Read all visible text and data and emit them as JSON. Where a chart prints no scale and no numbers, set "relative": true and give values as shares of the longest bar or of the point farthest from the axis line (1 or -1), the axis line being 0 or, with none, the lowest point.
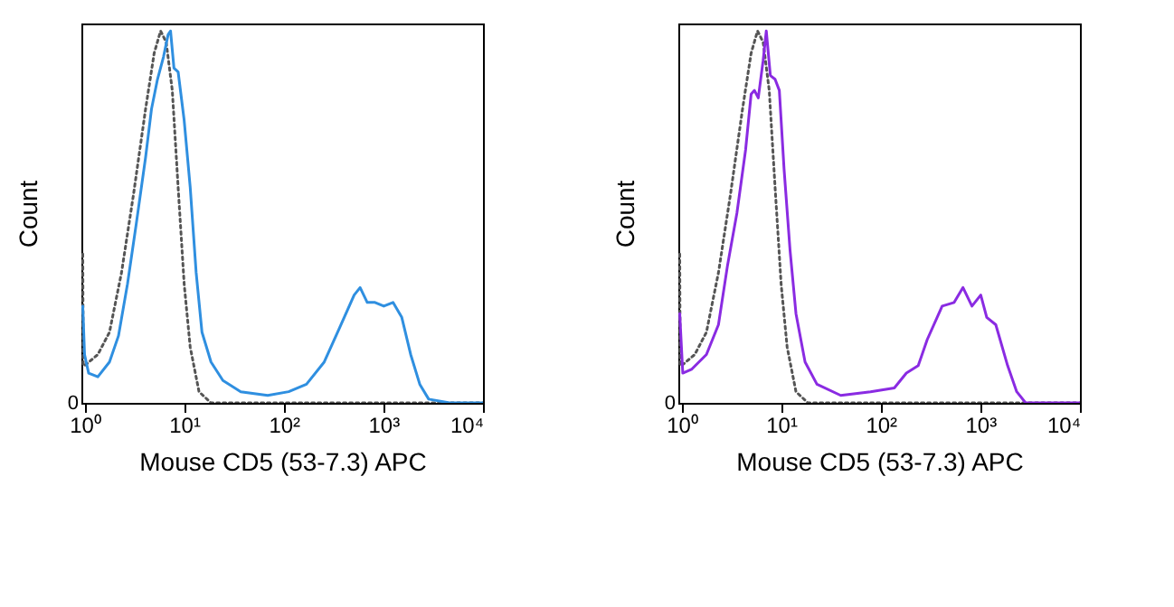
{
  "chart_data": [
    {
      "type": "line",
      "xlabel": "Mouse CD5 (53-7.3) APC",
      "ylabel": "Count",
      "relative": true,
      "log": "x",
      "grid": false,
      "marker": "none",
      "annotations": [
        "0"
      ],
      "xlim": [
        0.93,
        10000
      ],
      "xticks": [
        {
          "value": 1,
          "label": "10⁰"
        },
        {
          "value": 10,
          "label": "10¹"
        },
        {
          "value": 100,
          "label": "10²"
        },
        {
          "value": 1000,
          "label": "10³"
        },
        {
          "value": 10000,
          "label": "10⁴"
        }
      ],
      "series": [
        {
          "color": "#555555",
          "line_style": "dotted",
          "x": [
            0.96,
            0.97,
            1.0,
            1.36,
            1.78,
            2.35,
            3.1,
            4.1,
            5.0,
            5.8,
            6.6,
            7.6,
            8.7,
            10,
            11.5,
            14.1,
            18.6,
            100,
            1000,
            10000
          ],
          "values": [
            0.4,
            0.1,
            0.1,
            0.13,
            0.19,
            0.35,
            0.56,
            0.79,
            0.94,
            1.0,
            0.97,
            0.84,
            0.58,
            0.32,
            0.15,
            0.03,
            0,
            0,
            0,
            0
          ]
        },
        {
          "color": "#2f8fe0",
          "line_style": "solid",
          "x": [
            0.96,
            1.0,
            1.1,
            1.36,
            1.78,
            2.19,
            2.7,
            3.3,
            4.1,
            4.7,
            5.4,
            6.2,
            6.9,
            7.3,
            7.9,
            8.7,
            10,
            11.5,
            13.2,
            15.1,
            18.6,
            24.5,
            37,
            69,
            112,
            169,
            255,
            361,
            509,
            584,
            689,
            824,
            1010,
            1250,
            1530,
            1880,
            2320,
            2850,
            4620,
            10000
          ],
          "values": [
            0.26,
            0.13,
            0.08,
            0.07,
            0.11,
            0.18,
            0.32,
            0.48,
            0.66,
            0.79,
            0.87,
            0.93,
            0.99,
            1.0,
            0.9,
            0.89,
            0.76,
            0.58,
            0.35,
            0.19,
            0.11,
            0.06,
            0.03,
            0.02,
            0.03,
            0.05,
            0.11,
            0.2,
            0.29,
            0.31,
            0.27,
            0.27,
            0.26,
            0.27,
            0.23,
            0.13,
            0.05,
            0.01,
            0,
            0
          ]
        }
      ]
    },
    {
      "type": "line",
      "xlabel": "Mouse CD5 (53-7.3) APC",
      "ylabel": "Count",
      "relative": true,
      "log": "x",
      "grid": false,
      "marker": "none",
      "annotations": [
        "0"
      ],
      "xlim": [
        0.93,
        10000
      ],
      "xticks": [
        {
          "value": 1,
          "label": "10⁰"
        },
        {
          "value": 10,
          "label": "10¹"
        },
        {
          "value": 100,
          "label": "10²"
        },
        {
          "value": 1000,
          "label": "10³"
        },
        {
          "value": 10000,
          "label": "10⁴"
        }
      ],
      "series": [
        {
          "color": "#555555",
          "line_style": "dotted",
          "x": [
            0.96,
            0.97,
            1.0,
            1.36,
            1.78,
            2.35,
            3.1,
            4.1,
            5.0,
            5.8,
            6.6,
            7.6,
            8.7,
            10,
            11.5,
            14.1,
            18.6,
            100,
            1000,
            10000
          ],
          "values": [
            0.4,
            0.1,
            0.1,
            0.13,
            0.19,
            0.35,
            0.56,
            0.79,
            0.94,
            1.0,
            0.97,
            0.84,
            0.58,
            0.32,
            0.15,
            0.03,
            0,
            0,
            0,
            0
          ]
        },
        {
          "color": "#8a2be2",
          "line_style": "solid",
          "x": [
            0.96,
            1.03,
            1.26,
            1.78,
            2.35,
            2.9,
            3.6,
            4.4,
            5.0,
            5.4,
            5.9,
            6.6,
            7.1,
            7.8,
            8.7,
            9.6,
            10.7,
            12.3,
            14.1,
            17.4,
            22.9,
            39.7,
            79,
            137,
            181,
            238,
            293,
            414,
            546,
            670,
            824,
            1010,
            1160,
            1430,
            1880,
            2320,
            2850,
            10000
          ],
          "values": [
            0.24,
            0.08,
            0.09,
            0.13,
            0.21,
            0.37,
            0.51,
            0.68,
            0.83,
            0.84,
            0.82,
            0.92,
            1.0,
            0.88,
            0.87,
            0.84,
            0.63,
            0.41,
            0.24,
            0.11,
            0.05,
            0.02,
            0.03,
            0.04,
            0.08,
            0.1,
            0.17,
            0.26,
            0.27,
            0.31,
            0.26,
            0.29,
            0.23,
            0.21,
            0.1,
            0.03,
            0,
            0
          ]
        }
      ]
    }
  ]
}
